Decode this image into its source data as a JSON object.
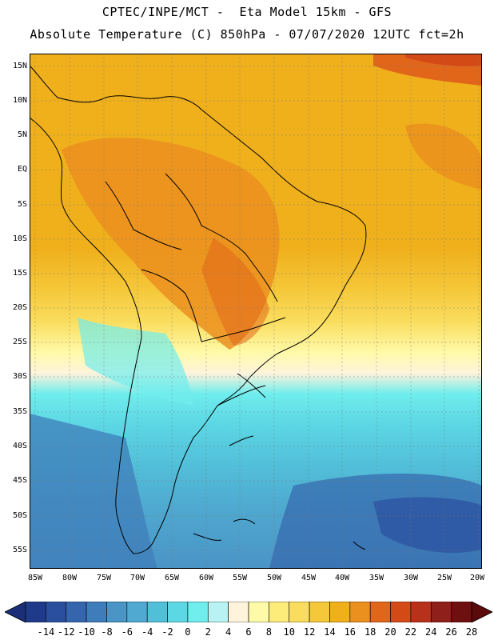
{
  "header": {
    "line1": "CPTEC/INPE/MCT -  Eta Model 15km - GFS",
    "line2": "Absolute Temperature (C) 850hPa - 07/07/2020 12UTC fct=2h"
  },
  "map": {
    "lat_labels": [
      "15N",
      "10N",
      "5N",
      "EQ",
      "5S",
      "10S",
      "15S",
      "20S",
      "25S",
      "30S",
      "35S",
      "40S",
      "45S",
      "50S",
      "55S"
    ],
    "lon_labels": [
      "85W",
      "80W",
      "75W",
      "70W",
      "65W",
      "60W",
      "55W",
      "50W",
      "45W",
      "40W",
      "35W",
      "30W",
      "25W",
      "20W"
    ]
  },
  "colorbar": {
    "labels": [
      "-14",
      "-12",
      "-10",
      "-8",
      "-6",
      "-4",
      "-2",
      "0",
      "2",
      "4",
      "6",
      "8",
      "10",
      "12",
      "14",
      "16",
      "18",
      "20",
      "22",
      "24",
      "26",
      "28"
    ],
    "colors": [
      "#1f3a8a",
      "#2a4f9f",
      "#3566ad",
      "#3f7dba",
      "#4a94c6",
      "#4fa9d0",
      "#52bfd9",
      "#5cd7e4",
      "#70eded",
      "#b8f2f2",
      "#fff3dc",
      "#fffaa8",
      "#fdeb7a",
      "#fadd5e",
      "#f5c83a",
      "#f0b01c",
      "#eb8f1e",
      "#e1661a",
      "#d44a17",
      "#b8311a",
      "#8f1f1a",
      "#6e1010"
    ],
    "low_arrow_color": "#1a2f78",
    "high_arrow_color": "#5a0a0a"
  }
}
